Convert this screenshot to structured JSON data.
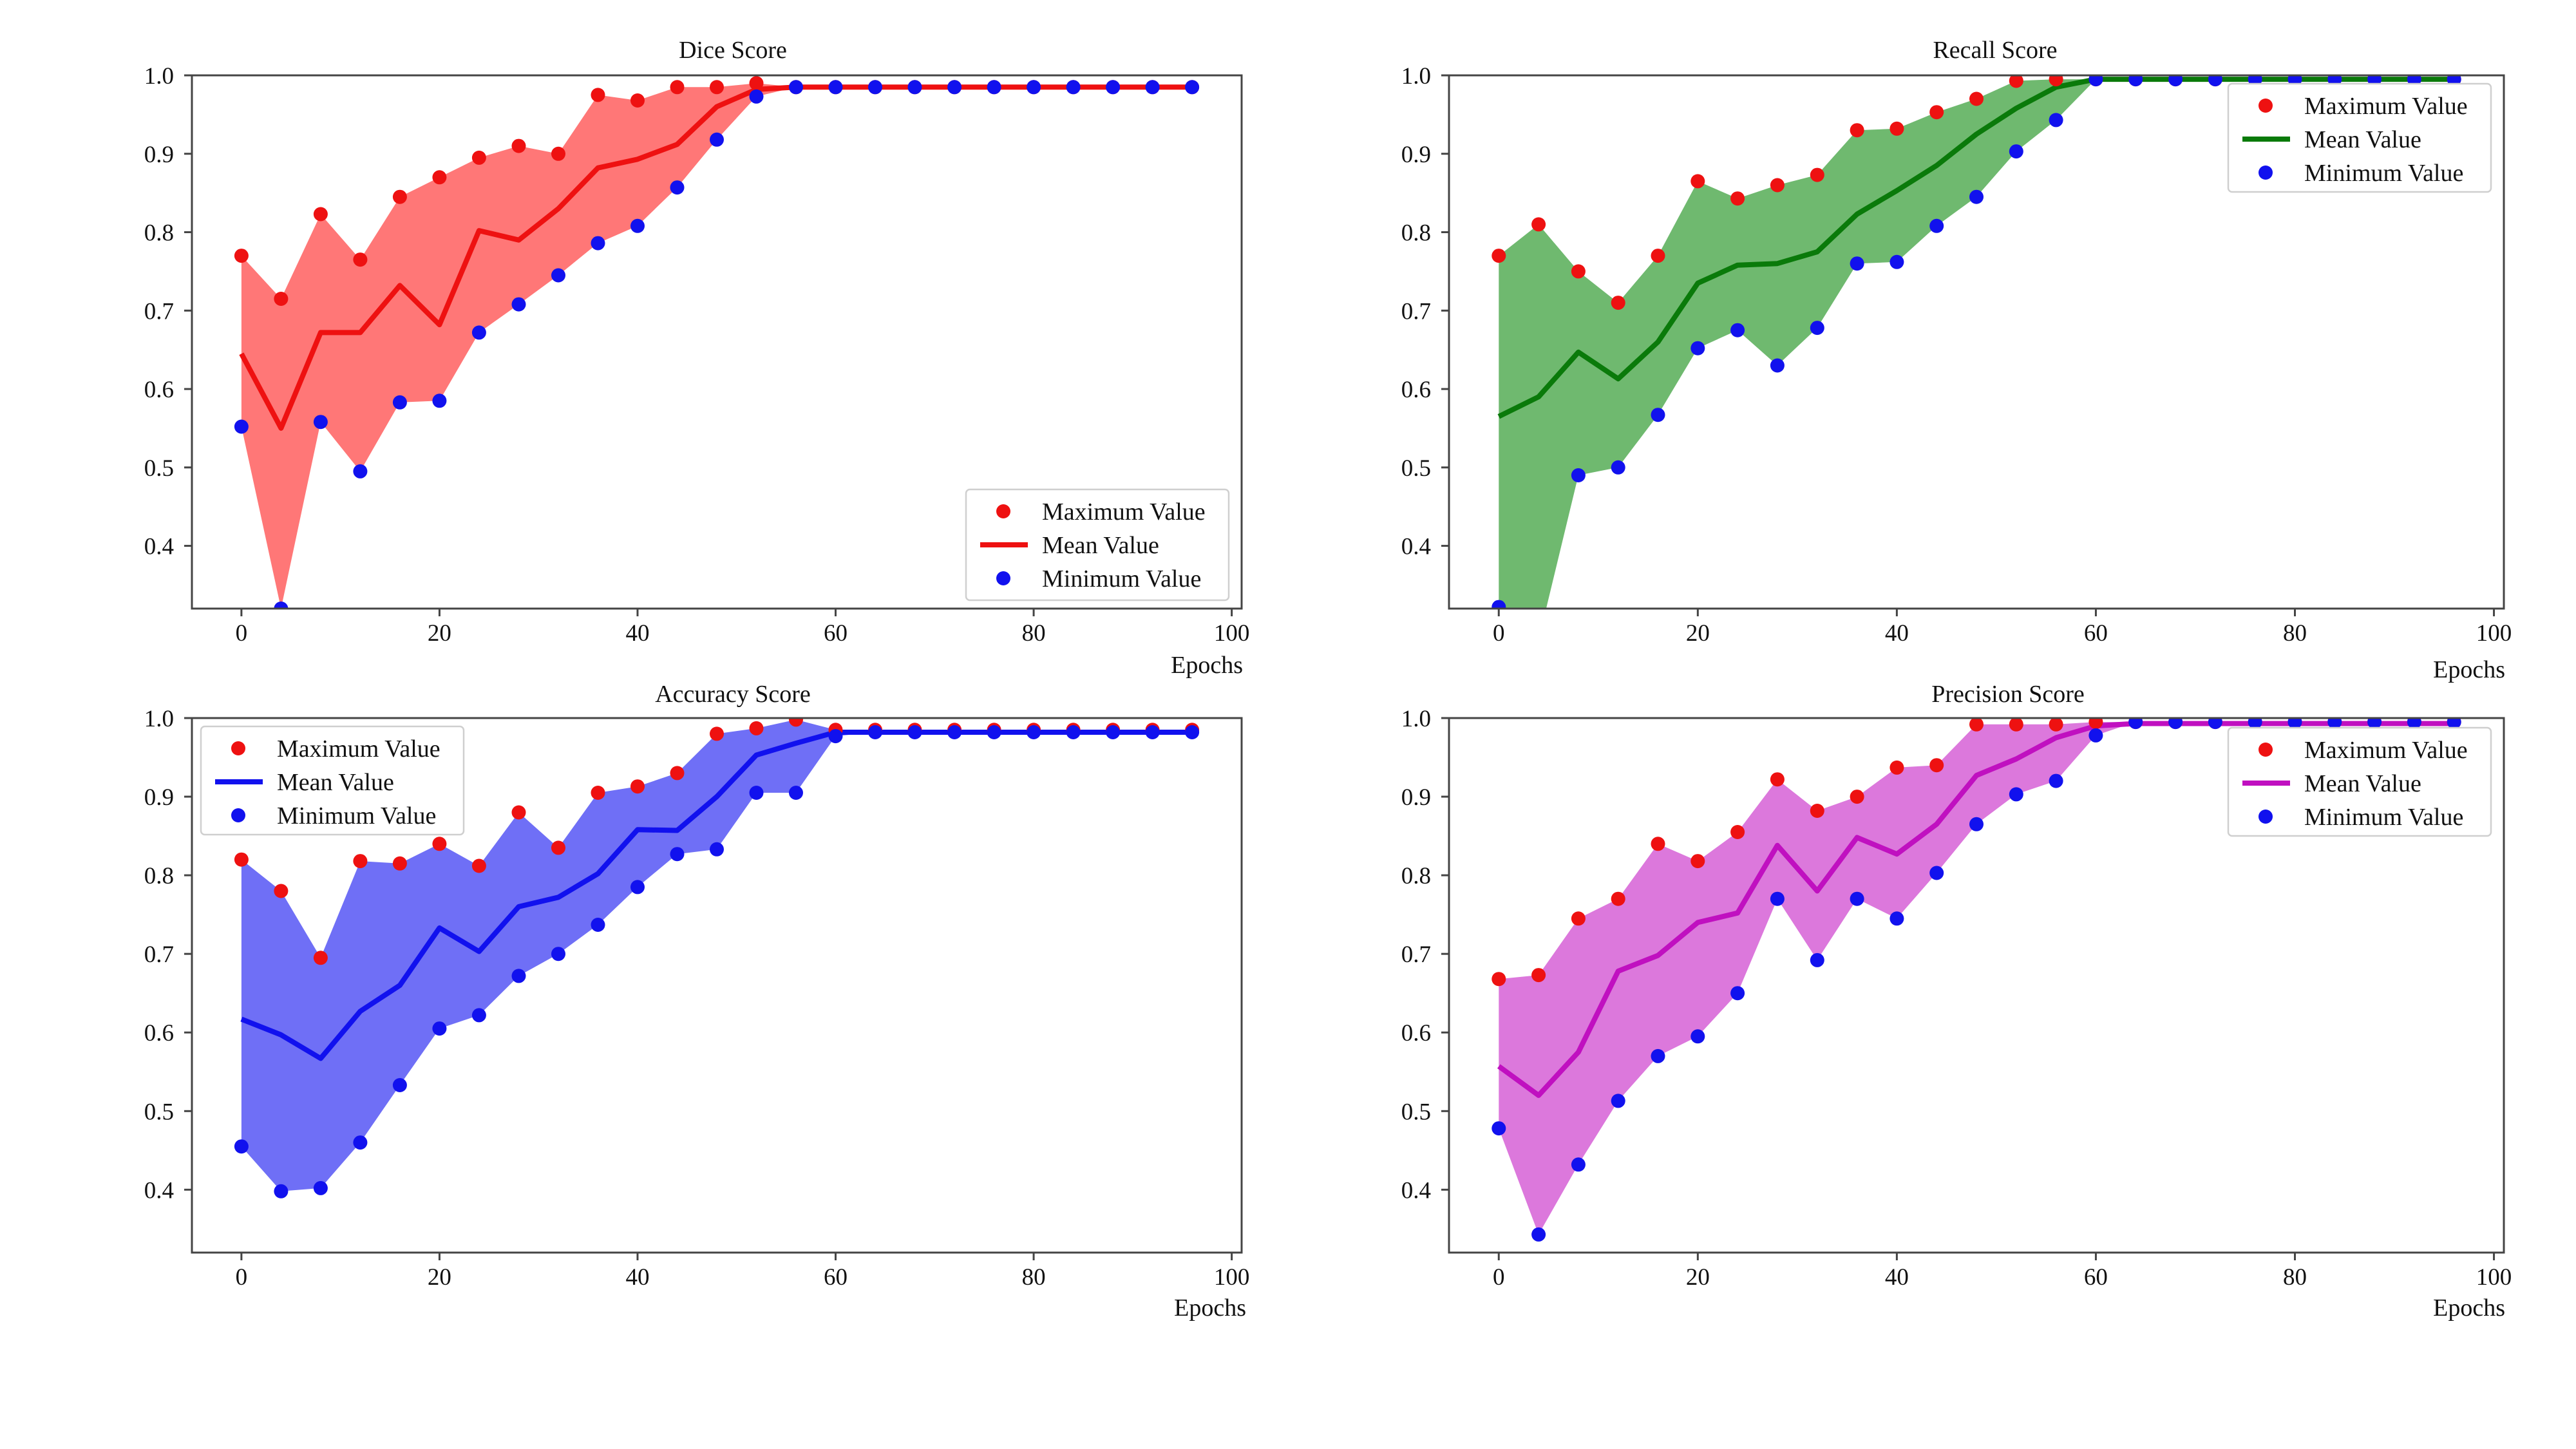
{
  "chart_data": [
    {
      "type": "line",
      "title": "Dice Score",
      "xlabel": "Epochs",
      "ylabel": "",
      "xlim": [
        -5,
        101
      ],
      "ylim": [
        0.32,
        1.0
      ],
      "xticks": [
        0,
        20,
        40,
        60,
        80,
        100
      ],
      "yticks": [
        0.4,
        0.5,
        0.6,
        0.7,
        0.8,
        0.9,
        1.0
      ],
      "grid": false,
      "legend_position": "lower-right",
      "fill_color": "#ff7777",
      "x": [
        0,
        4,
        8,
        12,
        16,
        20,
        24,
        28,
        32,
        36,
        40,
        44,
        48,
        52,
        56,
        60,
        64,
        68,
        72,
        76,
        80,
        84,
        88,
        92,
        96
      ],
      "series": [
        {
          "name": "Maximum Value",
          "kind": "scatter",
          "color": "#ee1111",
          "values": [
            0.77,
            0.715,
            0.823,
            0.765,
            0.845,
            0.87,
            0.895,
            0.91,
            0.9,
            0.975,
            0.968,
            0.985,
            0.985,
            0.99,
            0.985,
            0.985,
            0.985,
            0.985,
            0.985,
            0.985,
            0.985,
            0.985,
            0.985,
            0.985,
            0.985
          ]
        },
        {
          "name": "Mean Value",
          "kind": "line",
          "color": "#ee1111",
          "values": [
            0.645,
            0.55,
            0.672,
            0.672,
            0.732,
            0.682,
            0.802,
            0.79,
            0.83,
            0.882,
            0.893,
            0.912,
            0.96,
            0.982,
            0.985,
            0.985,
            0.985,
            0.985,
            0.985,
            0.985,
            0.985,
            0.985,
            0.985,
            0.985,
            0.985
          ]
        },
        {
          "name": "Minimum Value",
          "kind": "scatter",
          "color": "#1111ee",
          "values": [
            0.552,
            0.32,
            0.558,
            0.495,
            0.583,
            0.585,
            0.672,
            0.708,
            0.745,
            0.786,
            0.808,
            0.857,
            0.918,
            0.973,
            0.985,
            0.985,
            0.985,
            0.985,
            0.985,
            0.985,
            0.985,
            0.985,
            0.985,
            0.985,
            0.985
          ]
        }
      ]
    },
    {
      "type": "line",
      "title": "Recall Score",
      "xlabel": "Epochs",
      "ylabel": "",
      "xlim": [
        -5,
        101
      ],
      "ylim": [
        0.32,
        1.0
      ],
      "xticks": [
        0,
        20,
        40,
        60,
        80,
        100
      ],
      "yticks": [
        0.4,
        0.5,
        0.6,
        0.7,
        0.8,
        0.9,
        1.0
      ],
      "grid": false,
      "legend_position": "upper-right",
      "fill_color": "#6fb96f",
      "x": [
        0,
        4,
        8,
        12,
        16,
        20,
        24,
        28,
        32,
        36,
        40,
        44,
        48,
        52,
        56,
        60,
        64,
        68,
        72,
        76,
        80,
        84,
        88,
        92,
        96
      ],
      "series": [
        {
          "name": "Maximum Value",
          "kind": "scatter",
          "color": "#ee1111",
          "values": [
            0.77,
            0.81,
            0.75,
            0.71,
            0.77,
            0.865,
            0.843,
            0.86,
            0.873,
            0.93,
            0.932,
            0.953,
            0.97,
            0.993,
            0.995,
            0.995,
            0.995,
            0.995,
            0.995,
            0.995,
            0.995,
            0.995,
            0.995,
            0.995,
            0.995
          ]
        },
        {
          "name": "Mean Value",
          "kind": "line",
          "color": "#0a7a0a",
          "values": [
            0.565,
            0.59,
            0.647,
            0.613,
            0.66,
            0.735,
            0.758,
            0.76,
            0.775,
            0.823,
            0.853,
            0.885,
            0.925,
            0.958,
            0.985,
            0.995,
            0.995,
            0.995,
            0.995,
            0.995,
            0.995,
            0.995,
            0.995,
            0.995,
            0.995
          ]
        },
        {
          "name": "Minimum Value",
          "kind": "scatter",
          "color": "#1111ee",
          "values": [
            0.322,
            0.28,
            0.49,
            0.5,
            0.567,
            0.652,
            0.675,
            0.63,
            0.678,
            0.76,
            0.762,
            0.808,
            0.845,
            0.903,
            0.943,
            0.995,
            0.995,
            0.995,
            0.995,
            0.995,
            0.995,
            0.995,
            0.995,
            0.995,
            0.995
          ]
        }
      ]
    },
    {
      "type": "line",
      "title": "Accuracy Score",
      "xlabel": "Epochs",
      "ylabel": "",
      "xlim": [
        -5,
        101
      ],
      "ylim": [
        0.32,
        1.0
      ],
      "xticks": [
        0,
        20,
        40,
        60,
        80,
        100
      ],
      "yticks": [
        0.4,
        0.5,
        0.6,
        0.7,
        0.8,
        0.9,
        1.0
      ],
      "grid": false,
      "legend_position": "upper-left",
      "fill_color": "#6f6ff6",
      "x": [
        0,
        4,
        8,
        12,
        16,
        20,
        24,
        28,
        32,
        36,
        40,
        44,
        48,
        52,
        56,
        60,
        64,
        68,
        72,
        76,
        80,
        84,
        88,
        92,
        96
      ],
      "series": [
        {
          "name": "Maximum Value",
          "kind": "scatter",
          "color": "#ee1111",
          "values": [
            0.82,
            0.78,
            0.695,
            0.818,
            0.815,
            0.84,
            0.812,
            0.88,
            0.835,
            0.905,
            0.913,
            0.93,
            0.98,
            0.987,
            0.998,
            0.985,
            0.985,
            0.985,
            0.985,
            0.985,
            0.985,
            0.985,
            0.985,
            0.985,
            0.985
          ]
        },
        {
          "name": "Mean Value",
          "kind": "line",
          "color": "#1111ee",
          "values": [
            0.617,
            0.597,
            0.567,
            0.627,
            0.66,
            0.733,
            0.703,
            0.76,
            0.772,
            0.802,
            0.858,
            0.857,
            0.9,
            0.953,
            0.968,
            0.982,
            0.982,
            0.982,
            0.982,
            0.982,
            0.982,
            0.982,
            0.982,
            0.982,
            0.982
          ]
        },
        {
          "name": "Minimum Value",
          "kind": "scatter",
          "color": "#1111ee",
          "values": [
            0.455,
            0.398,
            0.402,
            0.46,
            0.533,
            0.605,
            0.622,
            0.672,
            0.7,
            0.737,
            0.785,
            0.827,
            0.833,
            0.905,
            0.905,
            0.977,
            0.982,
            0.982,
            0.982,
            0.982,
            0.982,
            0.982,
            0.982,
            0.982,
            0.982
          ]
        }
      ]
    },
    {
      "type": "line",
      "title": "Precision Score",
      "xlabel": "Epochs",
      "ylabel": "",
      "xlim": [
        -5,
        101
      ],
      "ylim": [
        0.32,
        1.0
      ],
      "xticks": [
        0,
        20,
        40,
        60,
        80,
        100
      ],
      "yticks": [
        0.4,
        0.5,
        0.6,
        0.7,
        0.8,
        0.9,
        1.0
      ],
      "grid": false,
      "legend_position": "upper-right",
      "fill_color": "#dc78dc",
      "x": [
        0,
        4,
        8,
        12,
        16,
        20,
        24,
        28,
        32,
        36,
        40,
        44,
        48,
        52,
        56,
        60,
        64,
        68,
        72,
        76,
        80,
        84,
        88,
        92,
        96
      ],
      "series": [
        {
          "name": "Maximum Value",
          "kind": "scatter",
          "color": "#ee1111",
          "values": [
            0.668,
            0.673,
            0.745,
            0.77,
            0.84,
            0.818,
            0.855,
            0.922,
            0.882,
            0.9,
            0.937,
            0.94,
            0.992,
            0.992,
            0.992,
            0.995,
            0.995,
            0.995,
            0.995,
            0.995,
            0.995,
            0.995,
            0.995,
            0.995,
            0.995
          ]
        },
        {
          "name": "Mean Value",
          "kind": "line",
          "color": "#c010c0",
          "values": [
            0.557,
            0.52,
            0.575,
            0.678,
            0.698,
            0.74,
            0.752,
            0.838,
            0.78,
            0.848,
            0.827,
            0.865,
            0.927,
            0.948,
            0.975,
            0.99,
            0.993,
            0.993,
            0.993,
            0.993,
            0.993,
            0.993,
            0.993,
            0.993,
            0.993
          ]
        },
        {
          "name": "Minimum Value",
          "kind": "scatter",
          "color": "#1111ee",
          "values": [
            0.478,
            0.343,
            0.432,
            0.513,
            0.57,
            0.595,
            0.65,
            0.77,
            0.692,
            0.77,
            0.745,
            0.803,
            0.865,
            0.903,
            0.92,
            0.978,
            0.995,
            0.995,
            0.995,
            0.995,
            0.995,
            0.995,
            0.995,
            0.995,
            0.995
          ]
        }
      ]
    }
  ]
}
